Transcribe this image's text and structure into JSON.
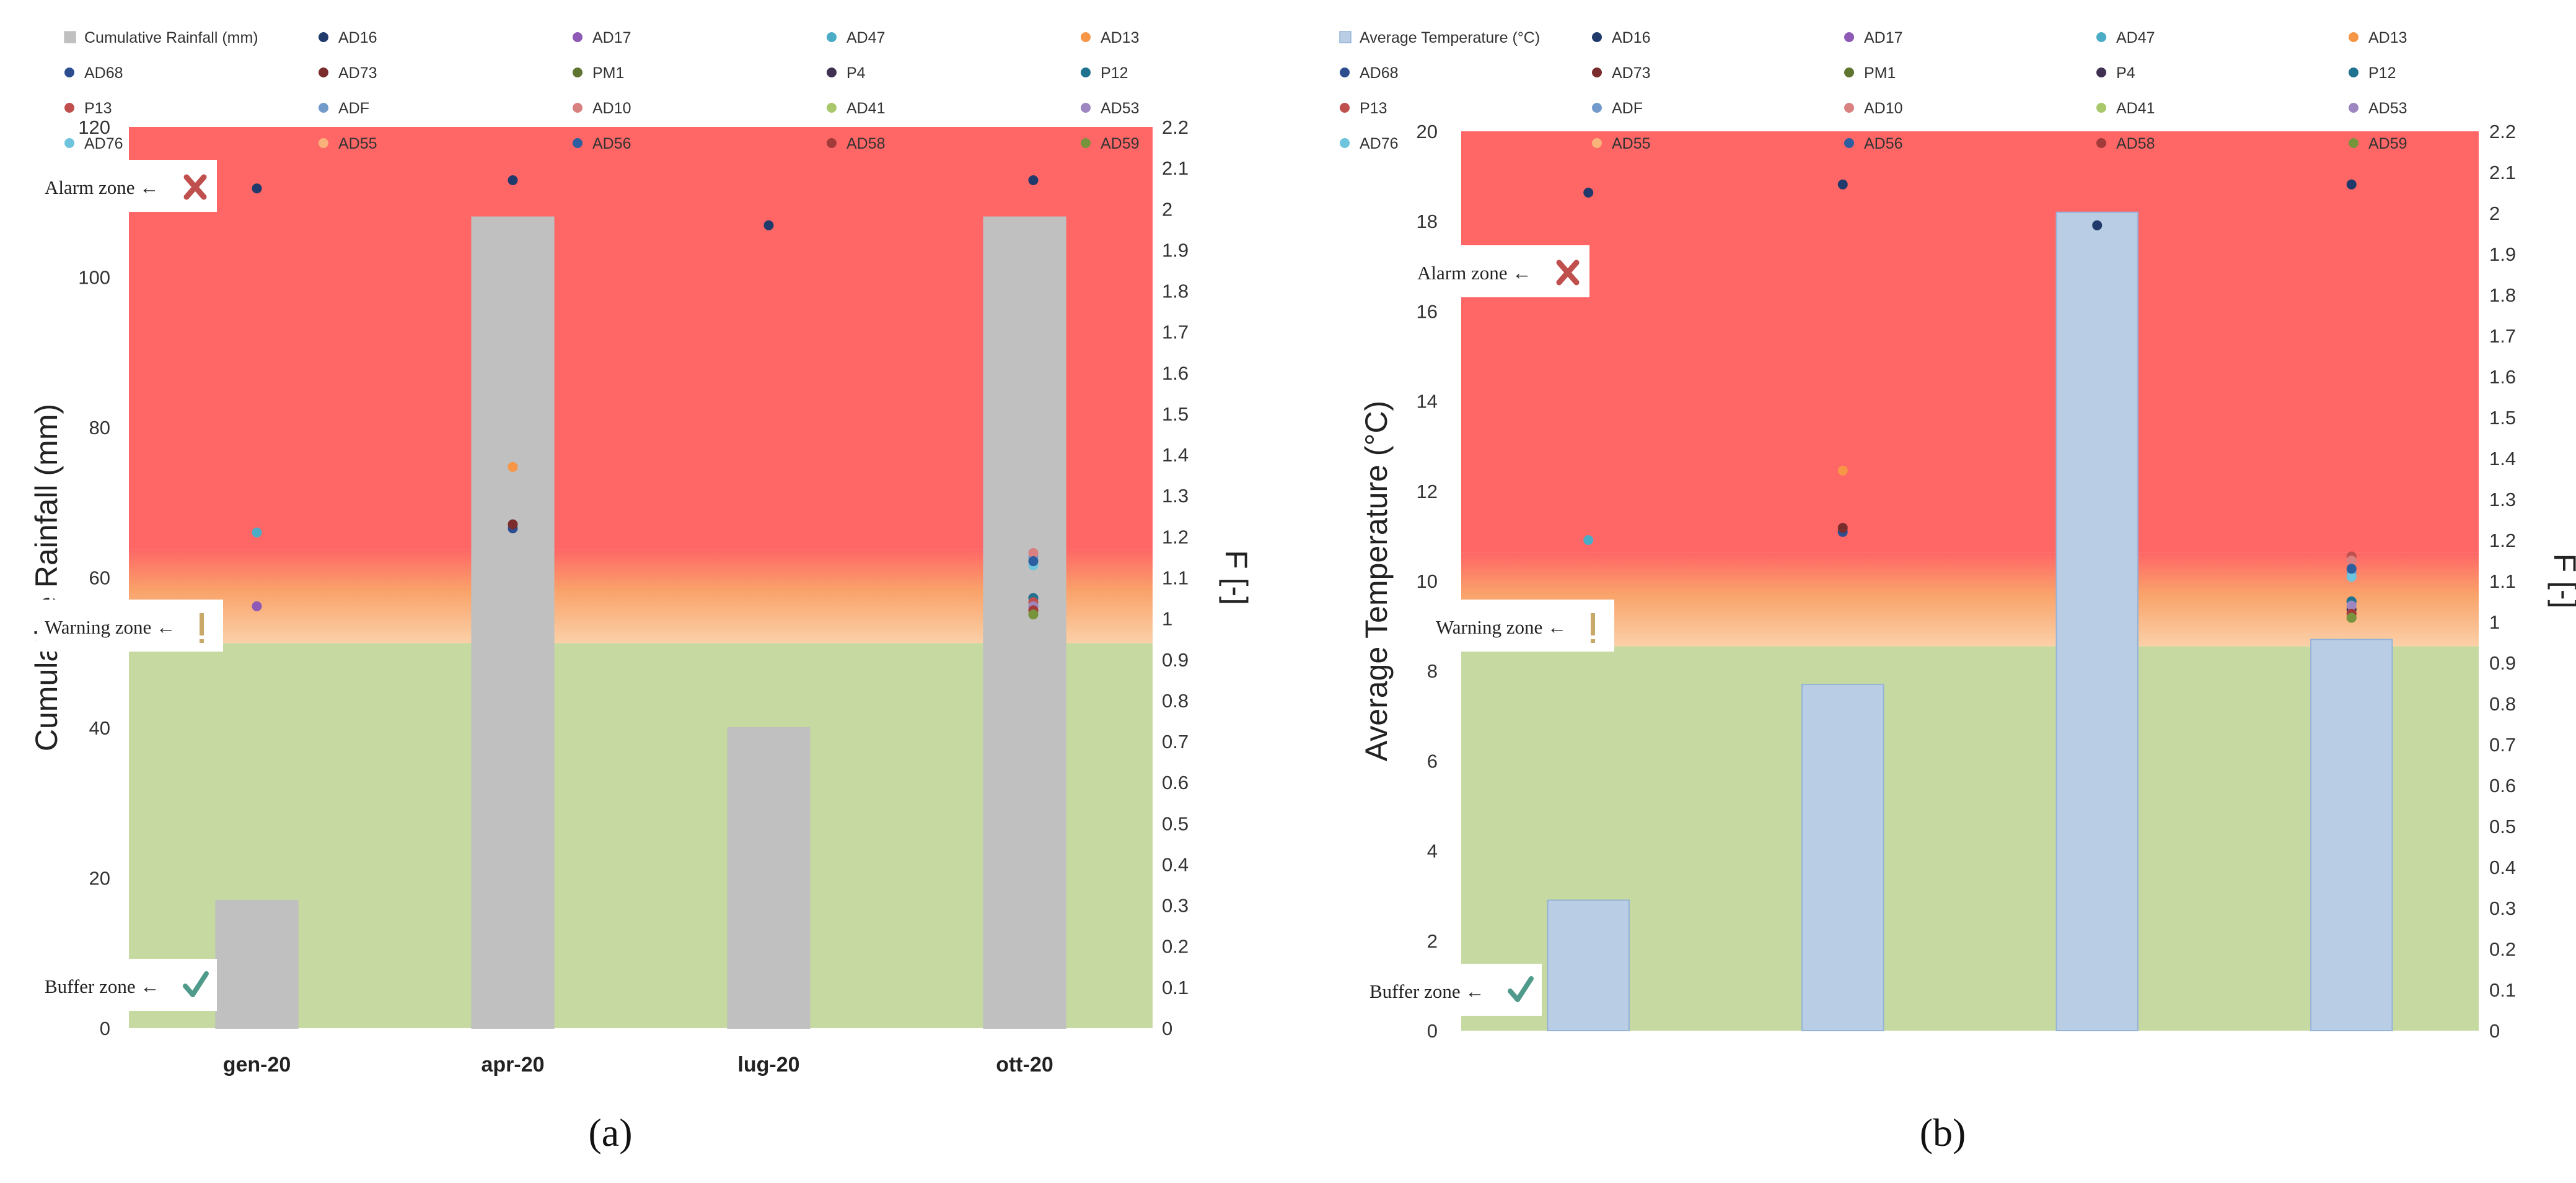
{
  "panels": [
    {
      "panel_label": "(a)",
      "zones": {
        "alarm": "Alarm zone",
        "warning": "Warning zone",
        "buffer": "Buffer zone"
      },
      "chart_data": {
        "type": "bar",
        "categories": [
          "gen-20",
          "apr-20",
          "lug-20",
          "ott-20"
        ],
        "bar_series": {
          "name": "Cumulative Rainfall (mm)",
          "values": [
            17,
            108,
            40,
            108
          ],
          "color": "#c0c0c0",
          "stroke": "#c0c0c0"
        },
        "ylabel": "Cumulative Rainfall (mm)",
        "y2label": "F [-]",
        "ylim": [
          0,
          120
        ],
        "ytick_step": 20,
        "y2lim": [
          0,
          2.2
        ],
        "y2tick_step": 0.1,
        "legend_placement": "top",
        "zone_colors": {
          "alarm": "#ff6666",
          "warning": "#fbd0a8",
          "buffer": "#c5d9a0"
        },
        "zone_bounds": {
          "buffer_top": 0.94,
          "warning_top": 1.17
        },
        "scatter_series": [
          {
            "name": "AD16",
            "color": "#1f3a6b",
            "values": [
              2.05,
              2.07,
              1.96,
              2.07
            ]
          },
          {
            "name": "AD17",
            "color": "#8e5ab5",
            "values": [
              1.03,
              null,
              null,
              1.02
            ]
          },
          {
            "name": "AD47",
            "color": "#4bacc6",
            "values": [
              1.21,
              null,
              null,
              null
            ]
          },
          {
            "name": "AD13",
            "color": "#f79646",
            "values": [
              null,
              1.37,
              null,
              1.02
            ]
          },
          {
            "name": "AD68",
            "color": "#2c4d8f",
            "values": [
              null,
              1.22,
              null,
              1.05
            ]
          },
          {
            "name": "AD73",
            "color": "#7b2c2c",
            "values": [
              null,
              1.23,
              null,
              1.01
            ]
          },
          {
            "name": "PM1",
            "color": "#5f7530",
            "values": [
              null,
              null,
              null,
              1.02
            ]
          },
          {
            "name": "P4",
            "color": "#403152",
            "values": [
              null,
              null,
              null,
              1.03
            ]
          },
          {
            "name": "P12",
            "color": "#1f7391",
            "values": [
              null,
              null,
              null,
              1.05
            ]
          },
          {
            "name": "P13",
            "color": "#c0504d",
            "values": [
              null,
              null,
              null,
              1.04
            ]
          },
          {
            "name": "ADF",
            "color": "#729aca",
            "values": [
              null,
              null,
              null,
              1.15
            ]
          },
          {
            "name": "AD10",
            "color": "#d98080",
            "values": [
              null,
              null,
              null,
              1.16
            ]
          },
          {
            "name": "AD41",
            "color": "#a9c86b",
            "values": [
              null,
              null,
              null,
              1.01
            ]
          },
          {
            "name": "AD53",
            "color": "#9e86c0",
            "values": [
              null,
              null,
              null,
              1.03
            ]
          },
          {
            "name": "AD76",
            "color": "#6dc4dc",
            "values": [
              null,
              null,
              null,
              1.13
            ]
          },
          {
            "name": "AD55",
            "color": "#f9b27a",
            "values": [
              null,
              null,
              null,
              1.02
            ]
          },
          {
            "name": "AD56",
            "color": "#2d5fa0",
            "values": [
              null,
              null,
              null,
              1.14
            ]
          },
          {
            "name": "AD58",
            "color": "#a33b3b",
            "values": [
              null,
              null,
              null,
              1.02
            ]
          },
          {
            "name": "AD59",
            "color": "#77933c",
            "values": [
              null,
              null,
              null,
              1.01
            ]
          }
        ]
      }
    },
    {
      "panel_label": "(b)",
      "zones": {
        "alarm": "Alarm zone",
        "warning": "Warning zone",
        "buffer": "Buffer zone"
      },
      "chart_data": {
        "type": "bar",
        "categories": [
          "",
          "",
          "",
          ""
        ],
        "bar_series": {
          "name": "Average Temperature (°C)",
          "values": [
            2.9,
            7.7,
            18.2,
            8.7
          ],
          "color": "#b9cde5",
          "stroke": "#95b3d7"
        },
        "ylabel": "Average Temperature (°C)",
        "y2label": "F [-]",
        "ylim": [
          0,
          20
        ],
        "ytick_step": 2,
        "y2lim": [
          0,
          2.2
        ],
        "y2tick_step": 0.1,
        "legend_placement": "top",
        "zone_colors": {
          "alarm": "#ff6666",
          "warning": "#fbd0a8",
          "buffer": "#c5d9a0"
        },
        "zone_bounds": {
          "buffer_top": 0.94,
          "warning_top": 1.17
        },
        "scatter_series": [
          {
            "name": "AD16",
            "color": "#1f3a6b",
            "values": [
              2.05,
              2.07,
              1.97,
              2.07
            ]
          },
          {
            "name": "AD17",
            "color": "#8e5ab5",
            "values": [
              1.03,
              null,
              null,
              1.02
            ]
          },
          {
            "name": "AD47",
            "color": "#4bacc6",
            "values": [
              1.2,
              null,
              null,
              null
            ]
          },
          {
            "name": "AD13",
            "color": "#f79646",
            "values": [
              null,
              1.37,
              null,
              1.02
            ]
          },
          {
            "name": "AD68",
            "color": "#2c4d8f",
            "values": [
              null,
              1.22,
              null,
              1.05
            ]
          },
          {
            "name": "AD73",
            "color": "#7b2c2c",
            "values": [
              null,
              1.23,
              null,
              1.01
            ]
          },
          {
            "name": "PM1",
            "color": "#5f7530",
            "values": [
              null,
              null,
              null,
              1.02
            ]
          },
          {
            "name": "P4",
            "color": "#403152",
            "values": [
              null,
              null,
              null,
              1.03
            ]
          },
          {
            "name": "P12",
            "color": "#1f7391",
            "values": [
              null,
              null,
              null,
              1.05
            ]
          },
          {
            "name": "P13",
            "color": "#c0504d",
            "values": [
              null,
              null,
              null,
              1.16
            ]
          },
          {
            "name": "ADF",
            "color": "#729aca",
            "values": [
              null,
              null,
              null,
              1.12
            ]
          },
          {
            "name": "AD10",
            "color": "#d98080",
            "values": [
              null,
              null,
              null,
              1.15
            ]
          },
          {
            "name": "AD41",
            "color": "#a9c86b",
            "values": [
              null,
              null,
              null,
              1.01
            ]
          },
          {
            "name": "AD53",
            "color": "#9e86c0",
            "values": [
              null,
              null,
              null,
              1.04
            ]
          },
          {
            "name": "AD76",
            "color": "#6dc4dc",
            "values": [
              null,
              null,
              null,
              1.11
            ]
          },
          {
            "name": "AD55",
            "color": "#f9b27a",
            "values": [
              null,
              null,
              null,
              1.02
            ]
          },
          {
            "name": "AD56",
            "color": "#2d5fa0",
            "values": [
              null,
              null,
              null,
              1.13
            ]
          },
          {
            "name": "AD58",
            "color": "#a33b3b",
            "values": [
              null,
              null,
              null,
              1.02
            ]
          },
          {
            "name": "AD59",
            "color": "#77933c",
            "values": [
              null,
              null,
              null,
              1.01
            ]
          }
        ]
      }
    }
  ]
}
